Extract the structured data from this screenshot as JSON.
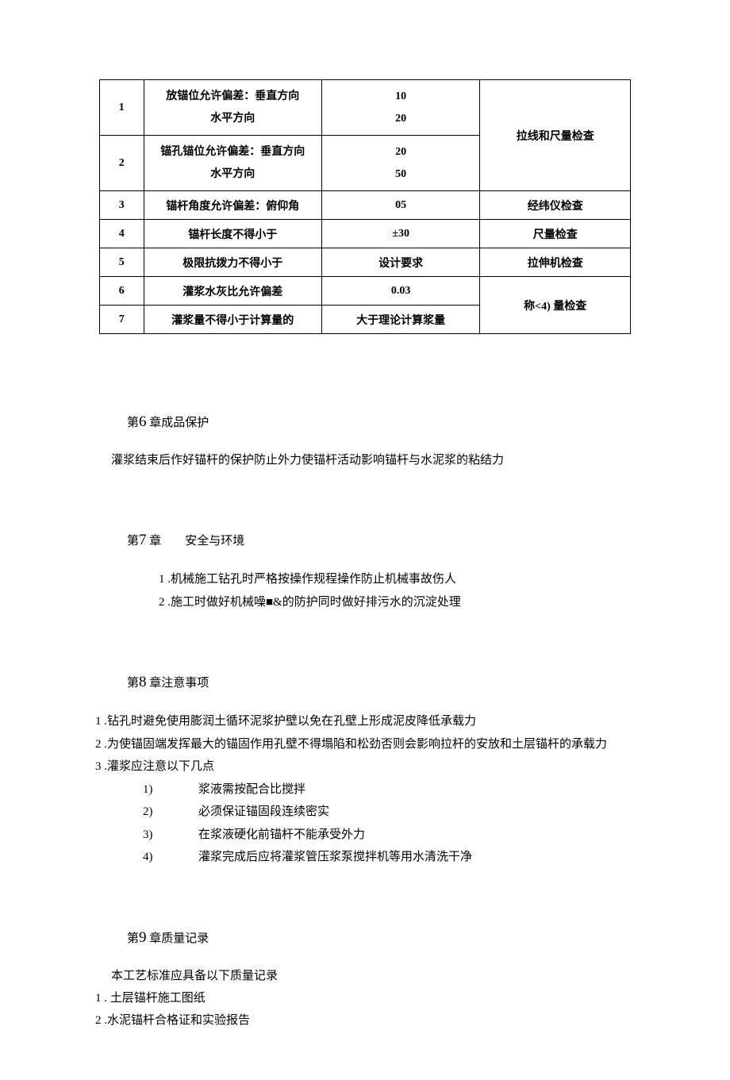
{
  "table": {
    "rows": [
      {
        "num": "1",
        "desc1": "放锚位允许偏差：垂直方向",
        "desc2": "水平方向",
        "val1": "10",
        "val2": "20",
        "check": "拉线和尺量检查"
      },
      {
        "num": "2",
        "desc1": "锚孔锚位允许偏差：垂直方向",
        "desc2": "水平方向",
        "val1": "20",
        "val2": "50",
        "check": ""
      },
      {
        "num": "3",
        "desc": "锚杆角度允许偏差：俯仰角",
        "val": "05",
        "check": "经纬仪检查"
      },
      {
        "num": "4",
        "desc": "锚杆长度不得小于",
        "val": "±30",
        "check": "尺量检查"
      },
      {
        "num": "5",
        "desc": "极限抗拨力不得小于",
        "val": "设计要求",
        "check": "拉伸机检查"
      },
      {
        "num": "6",
        "desc": "灌浆水灰比允许偏差",
        "val": "0.03",
        "check": "称<4) 量检查"
      },
      {
        "num": "7",
        "desc": "灌浆量不得小于计算量的",
        "val": "大于理论计算浆量",
        "check": ""
      }
    ]
  },
  "ch6": {
    "title_pre": "第",
    "title_num": "6",
    "title_post": " 章成品保护",
    "body": "灌浆结束后作好锚杆的保护防止外力使锚杆活动影响锚杆与水泥浆的粘结力"
  },
  "ch7": {
    "title_pre": "第",
    "title_num": "7",
    "title_post": " 章　　安全与环境",
    "items": [
      "1  .机械施工钻孔时严格按操作规程操作防止机械事故伤人",
      "2  .施工时做好机械噪■&的防护同时做好排污水的沉淀处理"
    ]
  },
  "ch8": {
    "title_pre": "第",
    "title_num": "8",
    "title_post": " 章注意事项",
    "items": [
      "1  .钻孔时避免使用膨润土循环泥浆护壁以免在孔壁上形成泥皮降低承载力",
      "2  .为使锚固端发挥最大的锚固作用孔壁不得塌陷和松劲否则会影响拉杆的安放和土层锚杆的承载力",
      "3  .灌浆应注意以下几点"
    ],
    "subitems": [
      {
        "n": "1)",
        "t": "浆液需按配合比搅拌"
      },
      {
        "n": "2)",
        "t": "必须保证锚固段连续密实"
      },
      {
        "n": "3)",
        "t": "在浆液硬化前锚杆不能承受外力"
      },
      {
        "n": "4)",
        "t": "灌浆完成后应将灌浆管压浆泵搅拌机等用水清洗干净"
      }
    ]
  },
  "ch9": {
    "title_pre": "第",
    "title_num": "9",
    "title_post": " 章质量记录",
    "intro": "本工艺标准应具备以下质量记录",
    "items": [
      "1  . 土层锚杆施工图纸",
      "2  .水泥锚杆合格证和实验报告"
    ]
  }
}
